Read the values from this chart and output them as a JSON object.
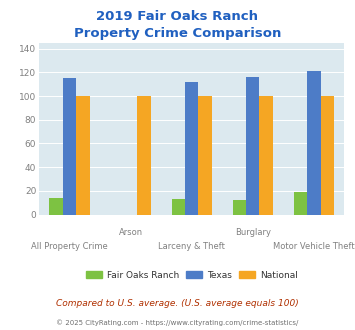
{
  "title": "2019 Fair Oaks Ranch\nProperty Crime Comparison",
  "fair_oaks": [
    14,
    0,
    13,
    12,
    19
  ],
  "texas": [
    115,
    0,
    112,
    116,
    121
  ],
  "national": [
    100,
    100,
    100,
    100,
    100
  ],
  "bar_colors": {
    "fair_oaks": "#7dc242",
    "texas": "#4d7cc7",
    "national": "#f5a623"
  },
  "ylim": [
    0,
    145
  ],
  "yticks": [
    0,
    20,
    40,
    60,
    80,
    100,
    120,
    140
  ],
  "title_color": "#2060c0",
  "title_fontsize": 9.5,
  "axis_bg_color": "#dce9ef",
  "fig_bg_color": "#ffffff",
  "legend_labels": [
    "Fair Oaks Ranch",
    "Texas",
    "National"
  ],
  "footnote1": "Compared to U.S. average. (U.S. average equals 100)",
  "footnote2": "© 2025 CityRating.com - https://www.cityrating.com/crime-statistics/",
  "footnote1_color": "#b03000",
  "footnote2_color": "#707070",
  "tick_label_color": "#808080",
  "label_top_row": [
    "",
    "Arson",
    "",
    "Burglary",
    ""
  ],
  "label_bottom_row": [
    "All Property Crime",
    "",
    "Larceny & Theft",
    "",
    "Motor Vehicle Theft"
  ],
  "group_width": 0.7
}
